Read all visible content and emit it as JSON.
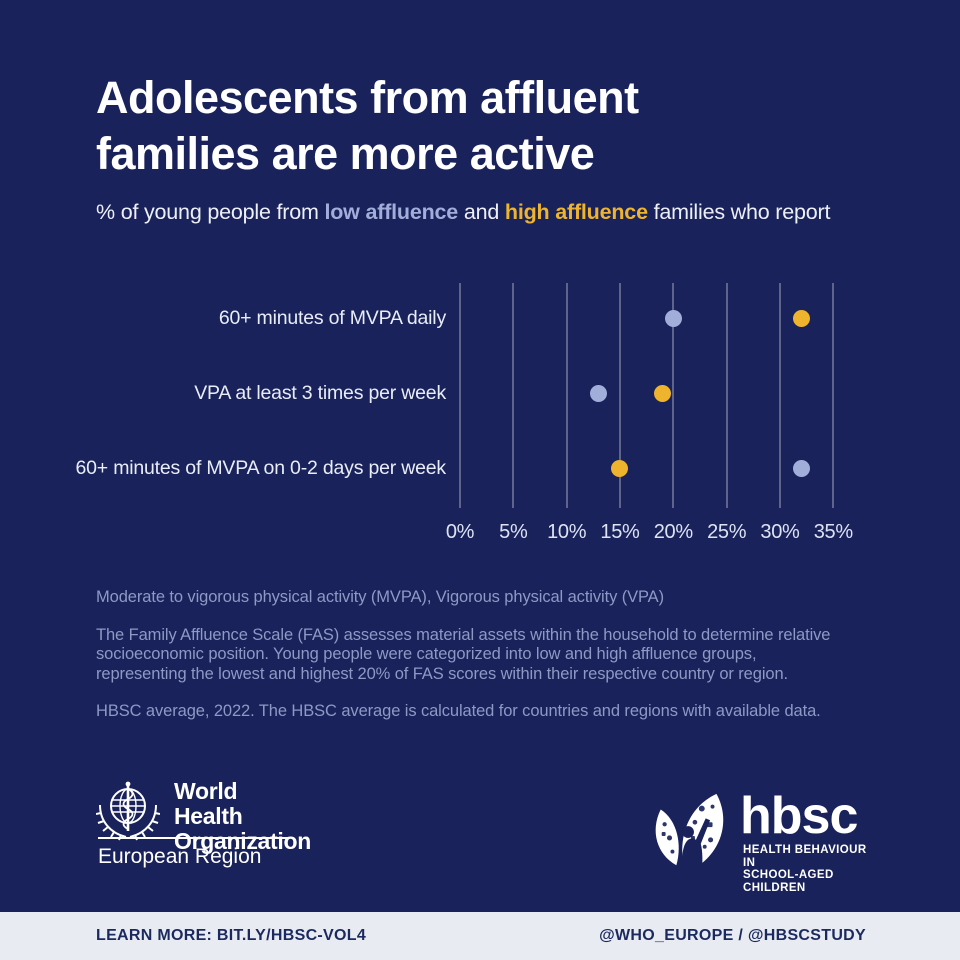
{
  "colors": {
    "background": "#19225a",
    "footer_bg": "#e9ebf2",
    "footer_text": "#1b2a5e",
    "low_affluence": "#a2aeda",
    "high_affluence": "#eeb42e",
    "gridline": "rgba(255,255,255,0.30)",
    "footnote_text": "#8e99c4",
    "title_text": "#ffffff"
  },
  "header": {
    "title_line1": "Adolescents from affluent",
    "title_line2": "families are more active",
    "subtitle_prefix": "% of young people from ",
    "subtitle_low": "low affluence",
    "subtitle_mid": " and ",
    "subtitle_high": "high affluence",
    "subtitle_suffix": " families who report"
  },
  "chart_data": {
    "type": "scatter",
    "variant": "horizontal-dot-plot",
    "categories": [
      "60+ minutes of MVPA daily",
      "VPA at least 3 times per week",
      "60+ minutes of MVPA on 0-2 days per week"
    ],
    "series": [
      {
        "name": "low affluence",
        "color": "#a2aeda",
        "values": [
          20,
          13,
          32
        ]
      },
      {
        "name": "high affluence",
        "color": "#eeb42e",
        "values": [
          32,
          19,
          15
        ]
      }
    ],
    "x_ticks": [
      0,
      5,
      10,
      15,
      20,
      25,
      30,
      35
    ],
    "x_tick_labels": [
      "0%",
      "5%",
      "10%",
      "15%",
      "20%",
      "25%",
      "30%",
      "35%"
    ],
    "xlim": [
      0,
      35
    ],
    "unit": "%",
    "grid": "vertical",
    "legend_position": "in-subtitle"
  },
  "footnotes": [
    "Moderate to vigorous physical activity (MVPA), Vigorous physical activity (VPA)",
    "The Family Affluence Scale (FAS) assesses material assets within the household to determine relative socioeconomic position. Young people were categorized into low and high affluence groups, representing the lowest and highest 20% of FAS scores within their respective country or region.",
    "HBSC average, 2022. The HBSC average is calculated for countries and regions with available data."
  ],
  "who_logo": {
    "icon": "who-emblem-icon",
    "line1": "World Health",
    "line2": "Organization",
    "region": "European Region"
  },
  "hbsc_logo": {
    "icon": "hbsc-emblem-icon",
    "wordmark": "hbsc",
    "tag_line1": "HEALTH BEHAVIOUR IN",
    "tag_line2": "SCHOOL-AGED CHILDREN"
  },
  "footer": {
    "left": "LEARN MORE: BIT.LY/HBSC-VOL4",
    "right": "@WHO_EUROPE / @HBSCSTUDY"
  }
}
